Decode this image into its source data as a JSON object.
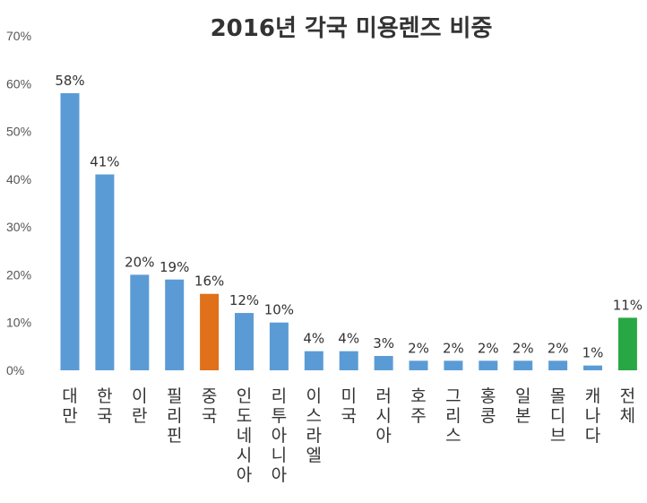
{
  "chart_data": {
    "type": "bar",
    "title": "2016년 각국 미용렌즈 비중",
    "xlabel": "",
    "ylabel": "",
    "ylim": [
      0,
      70
    ],
    "yticks": [
      "0%",
      "10%",
      "20%",
      "30%",
      "40%",
      "50%",
      "60%",
      "70%"
    ],
    "grid": false,
    "legend": "none",
    "categories": [
      "대만",
      "한국",
      "이란",
      "필리핀",
      "중국",
      "인도네시아",
      "리투아니아",
      "이스라엘",
      "미국",
      "러시아",
      "호주",
      "그리스",
      "홍콩",
      "일본",
      "몰디브",
      "캐나다",
      "전체"
    ],
    "values": [
      58,
      41,
      20,
      19,
      16,
      12,
      10,
      4,
      4,
      3,
      2,
      2,
      2,
      2,
      2,
      1,
      11
    ],
    "data_labels": [
      "58%",
      "41%",
      "20%",
      "19%",
      "16%",
      "12%",
      "10%",
      "4%",
      "4%",
      "3%",
      "2%",
      "2%",
      "2%",
      "2%",
      "2%",
      "1%",
      "11%"
    ],
    "colors": {
      "default": "#5B9BD5",
      "highlight": "#E0701A",
      "total": "#27A844"
    },
    "bar_colors": [
      "default",
      "default",
      "default",
      "default",
      "highlight",
      "default",
      "default",
      "default",
      "default",
      "default",
      "default",
      "default",
      "default",
      "default",
      "default",
      "default",
      "total"
    ]
  }
}
